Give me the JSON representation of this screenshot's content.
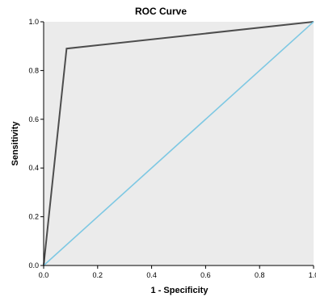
{
  "chart_data": {
    "type": "line",
    "title": "ROC Curve",
    "xlabel": "1 - Specificity",
    "ylabel": "Sensitivity",
    "xlim": [
      0,
      1
    ],
    "ylim": [
      0,
      1
    ],
    "x_ticks": [
      "0.0",
      "0.2",
      "0.4",
      "0.6",
      "0.8",
      "1.0"
    ],
    "y_ticks": [
      "0.0",
      "0.2",
      "0.4",
      "0.6",
      "0.8",
      "1.0"
    ],
    "grid": false,
    "legend": "none",
    "series": [
      {
        "x": [
          0,
          0.085,
          1
        ],
        "y": [
          0,
          0.89,
          1
        ],
        "color": "#4d4d4d"
      },
      {
        "x": [
          0,
          1
        ],
        "y": [
          0,
          1
        ],
        "color": "#7ec8e3"
      }
    ],
    "colors": {
      "plot_background": "#ebebeb",
      "axis": "#000000"
    }
  }
}
